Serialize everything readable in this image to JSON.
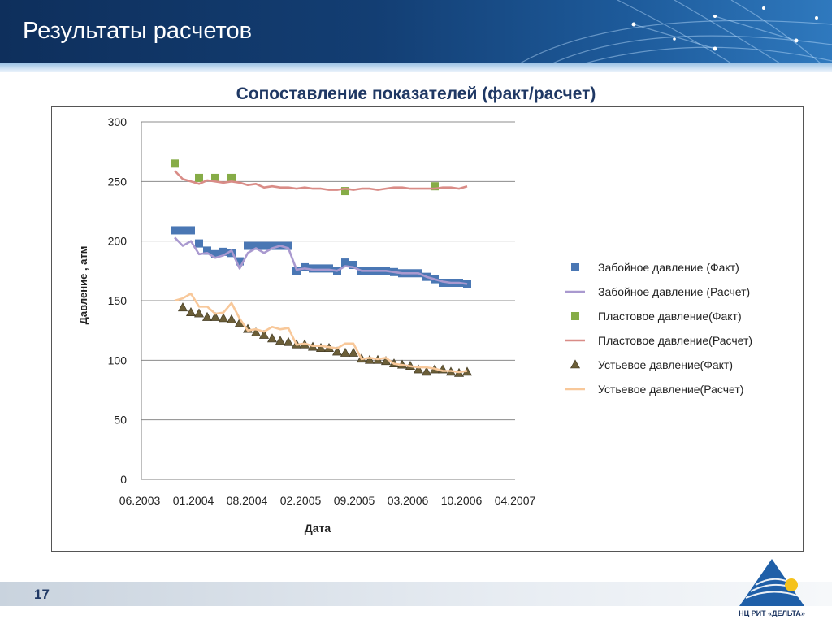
{
  "header": {
    "title": "Результаты расчетов"
  },
  "footer": {
    "page_number": "17",
    "logo_text": "НЦ РИТ «ДЕЛЬТА»"
  },
  "colors": {
    "zab": "#4a77b4",
    "zab_calc": "#a999cf",
    "plast": "#86ac47",
    "plast_calc": "#d98c87",
    "ust": "#6b5e38",
    "ust_calc": "#f8c89a"
  },
  "chart_data": {
    "type": "line",
    "title": "Сопоставление показателей (факт/расчет)",
    "xlabel": "Дата",
    "ylabel": "Давление , атм",
    "ylim": [
      0,
      300
    ],
    "yticks": [
      "0",
      "50",
      "100",
      "150",
      "200",
      "250",
      "300"
    ],
    "xticks": [
      "06.2003",
      "01.2004",
      "08.2004",
      "02.2005",
      "09.2005",
      "03.2006",
      "10.2006",
      "04.2007"
    ],
    "legend_position": "right",
    "grid": true,
    "series": [
      {
        "name": "Забойное давление (Факт)",
        "kind": "square",
        "x": [
          0,
          1,
          2,
          3,
          4,
          5,
          6,
          7,
          8,
          9,
          10,
          11,
          12,
          13,
          14,
          15,
          16,
          17,
          18,
          19,
          20,
          21,
          22,
          23,
          24,
          25,
          26,
          27,
          28,
          29,
          30,
          31,
          32,
          33,
          34,
          35,
          36
        ],
        "y": [
          209,
          209,
          209,
          198,
          192,
          189,
          191,
          190,
          183,
          196,
          196,
          196,
          196,
          196,
          196,
          175,
          178,
          177,
          177,
          177,
          175,
          182,
          180,
          175,
          175,
          175,
          175,
          174,
          173,
          173,
          173,
          170,
          168,
          165,
          165,
          165,
          164
        ]
      },
      {
        "name": "Забойное давление (Расчет)",
        "kind": "line",
        "x": [
          0,
          1,
          2,
          3,
          4,
          5,
          6,
          7,
          8,
          9,
          10,
          11,
          12,
          13,
          14,
          15,
          16,
          17,
          18,
          19,
          20,
          21,
          22,
          23,
          24,
          25,
          26,
          27,
          28,
          29,
          30,
          31,
          32,
          33,
          34,
          35,
          36
        ],
        "y": [
          203,
          196,
          200,
          189,
          190,
          186,
          188,
          192,
          177,
          190,
          194,
          190,
          194,
          196,
          194,
          176,
          177,
          176,
          176,
          176,
          175,
          179,
          178,
          175,
          175,
          175,
          175,
          174,
          173,
          173,
          173,
          170,
          168,
          166,
          165,
          165,
          164
        ]
      },
      {
        "name": "Пластовое давление(Факт)",
        "kind": "square",
        "x": [
          0,
          3,
          5,
          7,
          21,
          32
        ],
        "y": [
          265,
          253,
          253,
          253,
          242,
          246
        ]
      },
      {
        "name": "Пластовое давление(Расчет)",
        "kind": "line",
        "x": [
          0,
          1,
          2,
          3,
          4,
          5,
          6,
          7,
          8,
          9,
          10,
          11,
          12,
          13,
          14,
          15,
          16,
          17,
          18,
          19,
          20,
          21,
          22,
          23,
          24,
          25,
          26,
          27,
          28,
          29,
          30,
          31,
          32,
          33,
          34,
          35,
          36
        ],
        "y": [
          259,
          252,
          250,
          248,
          251,
          250,
          249,
          250,
          249,
          247,
          248,
          245,
          246,
          245,
          245,
          244,
          245,
          244,
          244,
          243,
          243,
          244,
          243,
          244,
          244,
          243,
          244,
          245,
          245,
          244,
          244,
          244,
          244,
          245,
          245,
          244,
          246
        ]
      },
      {
        "name": "Устьевое давление(Факт)",
        "kind": "triangle",
        "x": [
          1,
          2,
          3,
          4,
          5,
          6,
          7,
          8,
          9,
          10,
          11,
          12,
          13,
          14,
          15,
          16,
          17,
          18,
          19,
          20,
          21,
          22,
          23,
          24,
          25,
          26,
          27,
          28,
          29,
          30,
          31,
          32,
          33,
          34,
          35,
          36
        ],
        "y": [
          144,
          140,
          139,
          136,
          136,
          135,
          134,
          131,
          126,
          123,
          121,
          118,
          116,
          115,
          113,
          113,
          111,
          110,
          110,
          107,
          106,
          106,
          101,
          100,
          100,
          99,
          97,
          96,
          95,
          92,
          90,
          92,
          92,
          90,
          89,
          90
        ]
      },
      {
        "name": "Устьевое давление(Расчет)",
        "kind": "line",
        "x": [
          0,
          1,
          2,
          3,
          4,
          5,
          6,
          7,
          8,
          9,
          10,
          11,
          12,
          13,
          14,
          15,
          16,
          17,
          18,
          19,
          20,
          21,
          22,
          23,
          24,
          25,
          26,
          27,
          28,
          29,
          30,
          31,
          32,
          33,
          34,
          35,
          36
        ],
        "y": [
          150,
          152,
          156,
          145,
          145,
          139,
          140,
          148,
          135,
          125,
          126,
          124,
          128,
          126,
          127,
          113,
          114,
          112,
          112,
          111,
          110,
          114,
          114,
          101,
          102,
          101,
          102,
          97,
          96,
          95,
          94,
          94,
          93,
          91,
          91,
          90,
          91
        ]
      }
    ]
  }
}
